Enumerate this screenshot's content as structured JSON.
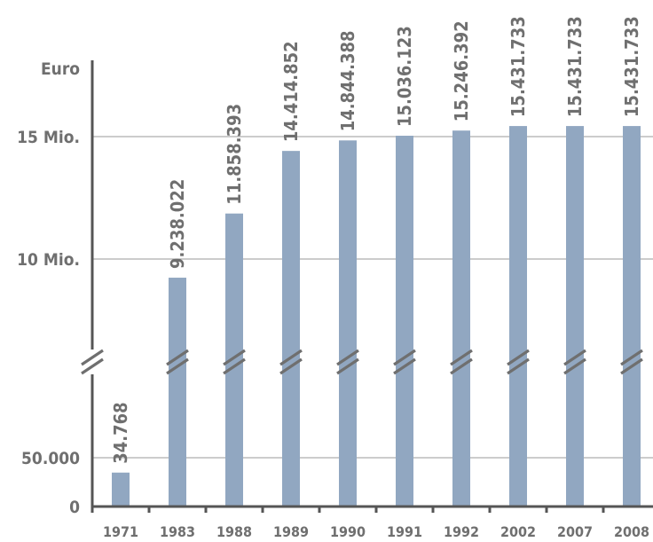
{
  "chart_data": {
    "type": "bar",
    "ylabel": "Euro",
    "axis_break": true,
    "bar_color": "#91a7c1",
    "text_color": "#6f6f6f",
    "grid": true,
    "categories": [
      "1971",
      "1983",
      "1988",
      "1989",
      "1990",
      "1991",
      "1992",
      "2002",
      "2007",
      "2008"
    ],
    "values": [
      34768,
      9238022,
      11858393,
      14414852,
      14844388,
      15036123,
      15246392,
      15431733,
      15431733,
      15431733
    ],
    "data_labels": [
      "34.768",
      "9.238.022",
      "11.858.393",
      "14.414.852",
      "14.844.388",
      "15.036.123",
      "15.246.392",
      "15.431.733",
      "15.431.733",
      "15.431.733"
    ],
    "y_ticks": [
      {
        "value": 0,
        "label": "0"
      },
      {
        "value": 50000,
        "label": "50.000"
      },
      {
        "value": 10000000,
        "label": "10 Mio."
      },
      {
        "value": 15000000,
        "label": "15 Mio."
      }
    ],
    "lower_segment_range": [
      0,
      50000
    ],
    "upper_segment_range": [
      10000000,
      15000000
    ]
  }
}
